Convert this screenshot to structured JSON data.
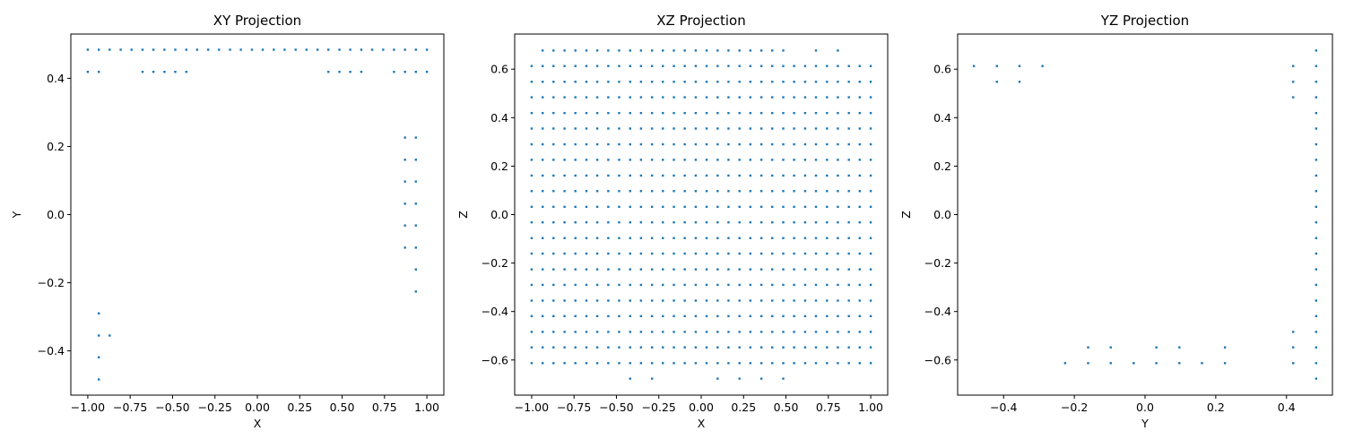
{
  "chart_data": [
    {
      "type": "scatter",
      "title": "XY Projection",
      "xlabel": "X",
      "ylabel": "Y",
      "xlim": [
        -1.1,
        1.1
      ],
      "ylim": [
        -0.53,
        0.53
      ],
      "xticks": [
        -1.0,
        -0.75,
        -0.5,
        -0.25,
        0.0,
        0.25,
        0.5,
        0.75,
        1.0
      ],
      "xtick_labels": [
        "−1.00",
        "−0.75",
        "−0.50",
        "−0.25",
        "0.00",
        "0.25",
        "0.50",
        "0.75",
        "1.00"
      ],
      "yticks": [
        -0.4,
        -0.2,
        0.0,
        0.2,
        0.4
      ],
      "ytick_labels": [
        "−0.4",
        "−0.2",
        "0.0",
        "0.2",
        "0.4"
      ],
      "grid": false,
      "marker_color": "#1f77b4",
      "series": [
        {
          "x": [
            -1.0,
            -0.935,
            -0.871,
            -0.806,
            -0.742,
            -0.677,
            -0.613,
            -0.548,
            -0.484,
            -0.419,
            -0.355,
            -0.29,
            -0.226,
            -0.161,
            -0.097,
            -0.032,
            0.032,
            0.097,
            0.161,
            0.226,
            0.29,
            0.355,
            0.419,
            0.484,
            0.548,
            0.613,
            0.677,
            0.742,
            0.806,
            0.871,
            0.935,
            1.0,
            -1.0,
            -0.935,
            -0.677,
            -0.613,
            -0.548,
            -0.484,
            -0.419,
            0.419,
            0.484,
            0.548,
            0.613,
            0.806,
            0.871,
            0.935,
            1.0,
            0.871,
            0.935,
            0.871,
            0.935,
            0.871,
            0.935,
            0.871,
            0.935,
            0.871,
            0.935,
            0.871,
            0.935,
            0.935,
            0.935,
            -0.935,
            -0.935,
            -0.871,
            -0.935,
            -0.935
          ],
          "y": [
            0.484,
            0.484,
            0.484,
            0.484,
            0.484,
            0.484,
            0.484,
            0.484,
            0.484,
            0.484,
            0.484,
            0.484,
            0.484,
            0.484,
            0.484,
            0.484,
            0.484,
            0.484,
            0.484,
            0.484,
            0.484,
            0.484,
            0.484,
            0.484,
            0.484,
            0.484,
            0.484,
            0.484,
            0.484,
            0.484,
            0.484,
            0.484,
            0.419,
            0.419,
            0.419,
            0.419,
            0.419,
            0.419,
            0.419,
            0.419,
            0.419,
            0.419,
            0.419,
            0.419,
            0.419,
            0.419,
            0.419,
            0.226,
            0.226,
            0.161,
            0.161,
            0.097,
            0.097,
            0.032,
            0.032,
            -0.032,
            -0.032,
            -0.097,
            -0.097,
            -0.161,
            -0.226,
            -0.29,
            -0.355,
            -0.355,
            -0.419,
            -0.484
          ]
        }
      ]
    },
    {
      "type": "scatter",
      "title": "XZ Projection",
      "xlabel": "X",
      "ylabel": "Z",
      "xlim": [
        -1.1,
        1.1
      ],
      "ylim": [
        -0.745,
        0.745
      ],
      "xticks": [
        -1.0,
        -0.75,
        -0.5,
        -0.25,
        0.0,
        0.25,
        0.5,
        0.75,
        1.0
      ],
      "xtick_labels": [
        "−1.00",
        "−0.75",
        "−0.50",
        "−0.25",
        "0.00",
        "0.25",
        "0.50",
        "0.75",
        "1.00"
      ],
      "yticks": [
        -0.6,
        -0.4,
        -0.2,
        0.0,
        0.2,
        0.4,
        0.6
      ],
      "ytick_labels": [
        "−0.6",
        "−0.4",
        "−0.2",
        "0.0",
        "0.2",
        "0.4",
        "0.6"
      ],
      "grid": false,
      "marker_color": "#1f77b4",
      "grid_points": {
        "x": [
          -1.0,
          -0.935,
          -0.871,
          -0.806,
          -0.742,
          -0.677,
          -0.613,
          -0.548,
          -0.484,
          -0.419,
          -0.355,
          -0.29,
          -0.226,
          -0.161,
          -0.097,
          -0.032,
          0.032,
          0.097,
          0.161,
          0.226,
          0.29,
          0.355,
          0.419,
          0.484,
          0.548,
          0.613,
          0.677,
          0.742,
          0.806,
          0.871,
          0.935,
          1.0
        ],
        "z": [
          -0.613,
          -0.548,
          -0.484,
          -0.419,
          -0.355,
          -0.29,
          -0.226,
          -0.161,
          -0.097,
          -0.032,
          0.032,
          0.097,
          0.161,
          0.226,
          0.29,
          0.355,
          0.419,
          0.484,
          0.548,
          0.613
        ]
      },
      "series": [
        {
          "x": [
            -0.935,
            -0.871,
            -0.806,
            -0.742,
            -0.677,
            -0.613,
            -0.548,
            -0.484,
            -0.419,
            -0.355,
            -0.29,
            -0.226,
            -0.161,
            -0.097,
            -0.032,
            0.032,
            0.097,
            0.161,
            0.226,
            0.29,
            0.355,
            0.419,
            0.484,
            0.677,
            0.806,
            -0.419,
            -0.29,
            0.097,
            0.226,
            0.355,
            0.484
          ],
          "y": [
            0.677,
            0.677,
            0.677,
            0.677,
            0.677,
            0.677,
            0.677,
            0.677,
            0.677,
            0.677,
            0.677,
            0.677,
            0.677,
            0.677,
            0.677,
            0.677,
            0.677,
            0.677,
            0.677,
            0.677,
            0.677,
            0.677,
            0.677,
            0.677,
            0.677,
            -0.677,
            -0.677,
            -0.677,
            -0.677,
            -0.677,
            -0.677
          ]
        }
      ]
    },
    {
      "type": "scatter",
      "title": "YZ Projection",
      "xlabel": "Y",
      "ylabel": "Z",
      "xlim": [
        -0.53,
        0.53
      ],
      "ylim": [
        -0.745,
        0.745
      ],
      "xticks": [
        -0.4,
        -0.2,
        0.0,
        0.2,
        0.4
      ],
      "xtick_labels": [
        "−0.4",
        "−0.2",
        "0.0",
        "0.2",
        "0.4"
      ],
      "yticks": [
        -0.6,
        -0.4,
        -0.2,
        0.0,
        0.2,
        0.4,
        0.6
      ],
      "ytick_labels": [
        "−0.6",
        "−0.4",
        "−0.2",
        "0.0",
        "0.2",
        "0.4",
        "0.6"
      ],
      "grid": false,
      "marker_color": "#1f77b4",
      "series": [
        {
          "x": [
            -0.484,
            -0.419,
            -0.355,
            -0.29,
            -0.419,
            -0.355,
            0.419,
            0.419,
            0.419,
            0.484,
            0.484,
            0.484,
            0.484,
            0.484,
            0.484,
            0.484,
            0.484,
            0.484,
            0.484,
            0.484,
            0.484,
            0.484,
            0.484,
            0.484,
            0.484,
            0.484,
            0.484,
            0.484,
            0.484,
            0.484,
            0.484,
            0.419,
            0.419,
            0.419,
            -0.161,
            -0.097,
            0.032,
            0.097,
            0.226,
            -0.226,
            -0.161,
            -0.097,
            -0.032,
            0.032,
            0.097,
            0.161,
            0.226
          ],
          "y": [
            0.613,
            0.613,
            0.613,
            0.613,
            0.548,
            0.548,
            0.613,
            0.548,
            0.484,
            0.677,
            0.613,
            0.548,
            0.484,
            0.419,
            0.355,
            0.29,
            0.226,
            0.161,
            0.097,
            0.032,
            -0.032,
            -0.097,
            -0.161,
            -0.226,
            -0.29,
            -0.355,
            -0.419,
            -0.484,
            -0.548,
            -0.613,
            -0.677,
            -0.484,
            -0.548,
            -0.613,
            -0.548,
            -0.548,
            -0.548,
            -0.548,
            -0.548,
            -0.613,
            -0.613,
            -0.613,
            -0.613,
            -0.613,
            -0.613,
            -0.613,
            -0.613
          ]
        }
      ]
    }
  ]
}
